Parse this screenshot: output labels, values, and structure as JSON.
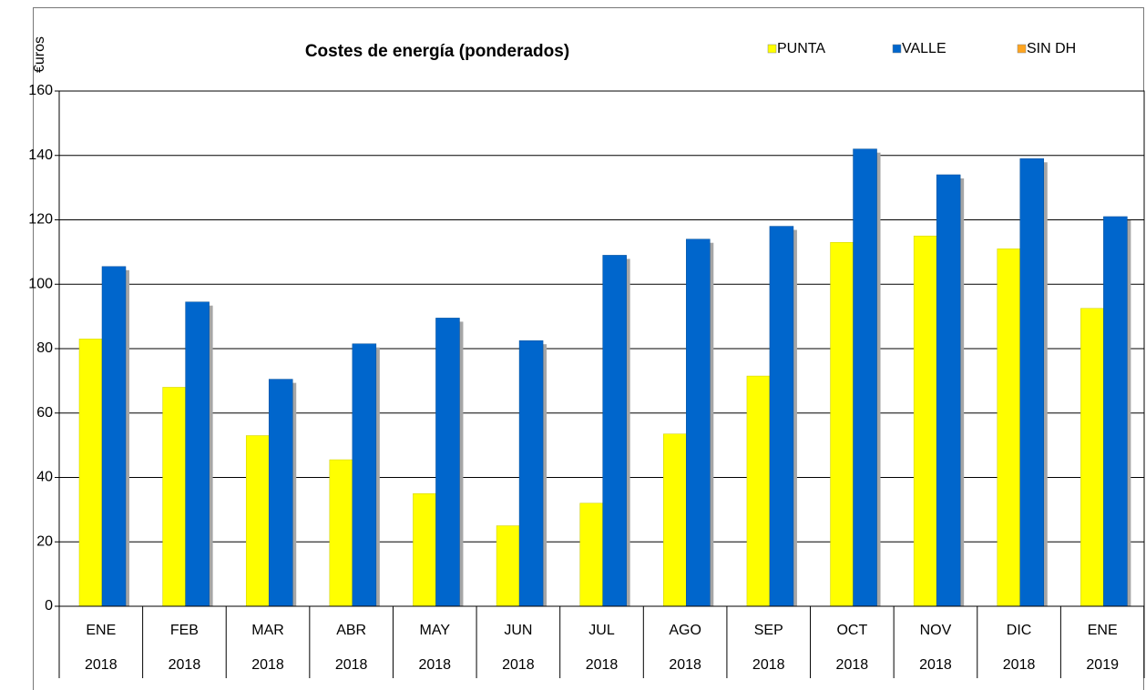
{
  "chart_data": {
    "type": "bar",
    "title": "Costes de energía  (ponderados)",
    "y_label": "€uros",
    "categories": [
      [
        "ENE",
        "2018"
      ],
      [
        "FEB",
        "2018"
      ],
      [
        "MAR",
        "2018"
      ],
      [
        "ABR",
        "2018"
      ],
      [
        "MAY",
        "2018"
      ],
      [
        "JUN",
        "2018"
      ],
      [
        "JUL",
        "2018"
      ],
      [
        "AGO",
        "2018"
      ],
      [
        "SEP",
        "2018"
      ],
      [
        "OCT",
        "2018"
      ],
      [
        "NOV",
        "2018"
      ],
      [
        "DIC",
        "2018"
      ],
      [
        "ENE",
        "2019"
      ]
    ],
    "series": [
      {
        "name": "PUNTA",
        "color": "#ffff00",
        "values": [
          83,
          68,
          53,
          45.5,
          35,
          25,
          32,
          53.5,
          71.5,
          113,
          115,
          111,
          92.5
        ]
      },
      {
        "name": "VALLE",
        "color": "#0066cc",
        "values": [
          105.5,
          94.5,
          70.5,
          81.5,
          89.5,
          82.5,
          109,
          114,
          118,
          142,
          134,
          139,
          121
        ]
      },
      {
        "name": "SIN DH",
        "color": "#ffa520",
        "values": [
          null,
          null,
          null,
          null,
          null,
          null,
          null,
          null,
          null,
          null,
          null,
          null,
          null
        ]
      }
    ],
    "ylim": [
      0,
      160
    ],
    "yticks": [
      0,
      20,
      40,
      60,
      80,
      100,
      120,
      140,
      160
    ],
    "grid": true,
    "legend": "top-right"
  }
}
